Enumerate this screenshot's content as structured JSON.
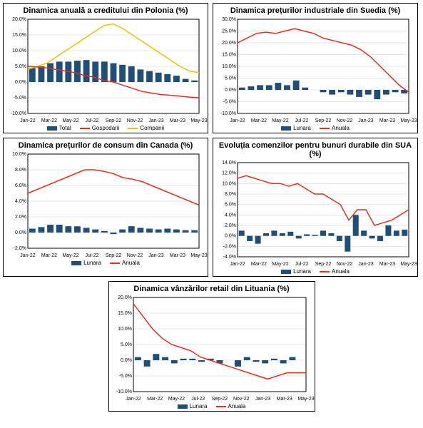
{
  "colors": {
    "bar": "#1f4e79",
    "line_red": "#e03020",
    "line_yellow": "#f0c000",
    "grid": "#cccccc",
    "bg": "#ffffff"
  },
  "xLabels": [
    "Jan-22",
    "Mar-22",
    "May-22",
    "Jul-22",
    "Sep-22",
    "Nov-22",
    "Jan-23",
    "Mar-23",
    "May-23"
  ],
  "charts": {
    "poland": {
      "title": "Dinamica anuală a creditului din Polonia (%)",
      "yMin": -10,
      "yMax": 20,
      "yStep": 5,
      "bars": [
        4.5,
        5,
        6,
        6.5,
        6.5,
        6.8,
        7,
        6.5,
        6.5,
        6,
        5.5,
        5,
        4,
        3.5,
        3,
        2.5,
        2,
        1,
        0.5
      ],
      "line_red": [
        5,
        4.8,
        4.5,
        4,
        3.5,
        3,
        2,
        1.5,
        0.5,
        0,
        -1,
        -2,
        -3,
        -3.5,
        -4,
        -4.2,
        -4.5,
        -4.8,
        -5
      ],
      "line_yellow": [
        4,
        5,
        6,
        8,
        10,
        12,
        14,
        16,
        18,
        18.5,
        17,
        15,
        13,
        11,
        9,
        7,
        5,
        3.5,
        3
      ],
      "legend": [
        {
          "type": "bar",
          "color": "#1f4e79",
          "label": "Total"
        },
        {
          "type": "line",
          "color": "#e03020",
          "label": "Gospodarii"
        },
        {
          "type": "line",
          "color": "#f0c000",
          "label": "Companii"
        }
      ]
    },
    "sweden": {
      "title": "Dinamica prețurilor industriale din Suedia (%)",
      "yMin": -10,
      "yMax": 30,
      "yStep": 5,
      "bars": [
        1,
        1.5,
        2,
        2,
        3,
        2,
        4,
        1,
        0,
        -1,
        -2,
        -1,
        -2,
        -3,
        -2,
        -4,
        -2,
        -1,
        -1.5
      ],
      "line_red": [
        20,
        22,
        24,
        24.5,
        24,
        25,
        26,
        25,
        24,
        22,
        21,
        20,
        19,
        17,
        14,
        10,
        6,
        2,
        -1
      ],
      "legend": [
        {
          "type": "bar",
          "color": "#1f4e79",
          "label": "Lunara"
        },
        {
          "type": "line",
          "color": "#e03020",
          "label": "Anuala"
        }
      ]
    },
    "canada": {
      "title": "Dinamica prețurilor de consum din Canada (%)",
      "yMin": -2,
      "yMax": 10,
      "yStep": 2,
      "bars": [
        0.5,
        0.7,
        1,
        1,
        0.8,
        0.8,
        0.6,
        0.4,
        0.2,
        -0.2,
        0.4,
        0.8,
        0.6,
        0.5,
        0.4,
        0.5,
        0.4,
        0.3,
        0.3
      ],
      "line_red": [
        5,
        5.5,
        6,
        6.5,
        7,
        7.5,
        8,
        8,
        7.8,
        7.5,
        7,
        6.8,
        6.5,
        6,
        5.5,
        5,
        4.5,
        4,
        3.5
      ],
      "legend": [
        {
          "type": "bar",
          "color": "#1f4e79",
          "label": "Lunara"
        },
        {
          "type": "line",
          "color": "#e03020",
          "label": "Anuala"
        }
      ]
    },
    "usa": {
      "title": "Evoluția comenzilor pentru bunuri durabile din SUA (%)",
      "yMin": -4,
      "yMax": 14,
      "yStep": 2,
      "bars": [
        1,
        -1,
        -1.5,
        0.5,
        1,
        0.5,
        0.8,
        -0.5,
        0.3,
        0.2,
        1,
        0.5,
        -1,
        -3,
        4,
        1,
        -0.5,
        -1,
        2,
        1,
        1.2
      ],
      "line_red": [
        11,
        11.5,
        11,
        10.5,
        10,
        10,
        9.5,
        10,
        9,
        8,
        8,
        7,
        6,
        3,
        5,
        5,
        2,
        2.5,
        3,
        4,
        5
      ],
      "legend": [
        {
          "type": "bar",
          "color": "#1f4e79",
          "label": "Lunara"
        },
        {
          "type": "line",
          "color": "#e03020",
          "label": "Anuala"
        }
      ]
    },
    "lithuania": {
      "title": "Dinamica vânzărilor retail din Lituania (%)",
      "yMin": -10,
      "yMax": 20,
      "yStep": 5,
      "bars": [
        1,
        -2,
        2,
        1,
        -1,
        0.5,
        0.5,
        -0.5,
        0.5,
        -1,
        0,
        -2,
        1,
        -0.5,
        -1,
        0.5,
        -1,
        1,
        0
      ],
      "line_red": [
        18,
        14,
        10,
        7,
        5,
        4,
        3,
        1,
        0,
        -1,
        -2,
        -3,
        -4,
        -5,
        -6,
        -5,
        -4,
        -4,
        -4
      ],
      "legend": [
        {
          "type": "bar",
          "color": "#1f4e79",
          "label": "Lunara"
        },
        {
          "type": "line",
          "color": "#e03020",
          "label": "Anuala"
        }
      ]
    }
  },
  "layout": {
    "panelW_half": 288,
    "panelW_center": 290,
    "chartH": 150,
    "innerLeft": 30,
    "innerRight": 6,
    "innerTop": 4,
    "innerBottom": 14,
    "title_fontsize": 11,
    "axis_fontsize": 7,
    "legend_fontsize": 8,
    "bar_width_ratio": 0.7
  }
}
